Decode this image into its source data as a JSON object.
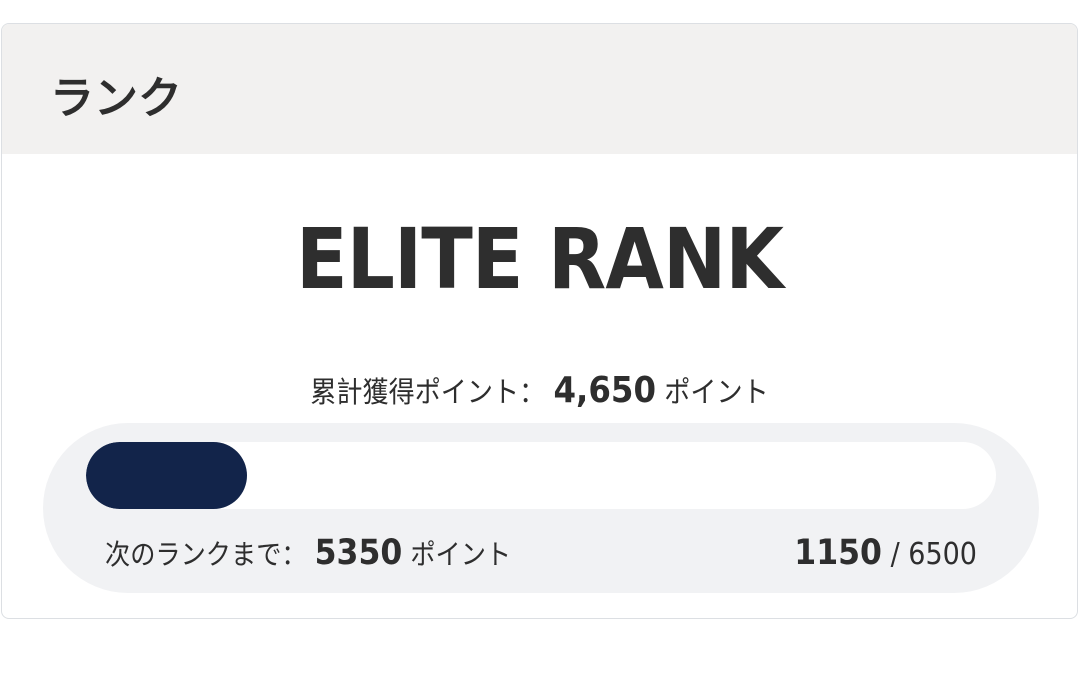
{
  "header": {
    "title": "ランク"
  },
  "rank": {
    "name": "ELITE RANK"
  },
  "total": {
    "label": "累計獲得ポイント：",
    "value": "4,650",
    "unit": "ポイント"
  },
  "progress": {
    "current": 1150,
    "max": 6500,
    "current_label": "1150",
    "separator": "/",
    "max_label": "6500",
    "fill_color": "#12244a"
  },
  "next": {
    "label": "次のランクまで：",
    "value": "5350",
    "unit": "ポイント"
  }
}
